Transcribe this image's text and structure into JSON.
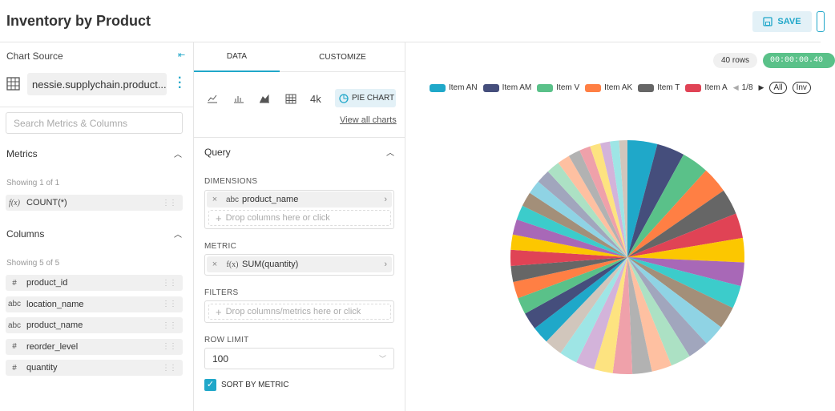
{
  "header": {
    "title": "Inventory by Product",
    "save": "SAVE"
  },
  "source": {
    "heading": "Chart Source",
    "dataset": "nessie.supplychain.product...",
    "search_placeholder": "Search Metrics & Columns",
    "metrics_heading": "Metrics",
    "metrics_showing": "Showing 1 of 1",
    "metrics": [
      {
        "icon": "f(x)",
        "name": "COUNT(*)"
      }
    ],
    "columns_heading": "Columns",
    "columns_showing": "Showing 5 of 5",
    "columns": [
      {
        "icon": "#",
        "name": "product_id"
      },
      {
        "icon": "abc",
        "name": "location_name"
      },
      {
        "icon": "abc",
        "name": "product_name"
      },
      {
        "icon": "#",
        "name": "reorder_level"
      },
      {
        "icon": "#",
        "name": "quantity"
      }
    ]
  },
  "tabs": [
    "DATA",
    "CUSTOMIZE"
  ],
  "chart_types": {
    "big_number": "4k",
    "selected": "PIE CHART",
    "view_all": "View all charts"
  },
  "query": {
    "heading": "Query",
    "dimensions_label": "DIMENSIONS",
    "dimension": {
      "icon": "abc",
      "name": "product_name"
    },
    "dimension_drop": "Drop columns here or click",
    "metric_label": "METRIC",
    "metric": {
      "icon": "f(x)",
      "name": "SUM(quantity)"
    },
    "filters_label": "FILTERS",
    "filters_drop": "Drop columns/metrics here or click",
    "row_limit_label": "ROW LIMIT",
    "row_limit": 100,
    "sort_by_metric": "SORT BY METRIC"
  },
  "status": {
    "rows": "40 rows",
    "timer": "00:00:00.40"
  },
  "legend_controls": {
    "page": "1/8",
    "all": "All",
    "inv": "Inv"
  },
  "chart_data": {
    "type": "pie",
    "categories": [
      "Item AN",
      "Item AM",
      "Item V",
      "Item AK",
      "Item T",
      "Item A",
      null,
      null,
      null,
      null,
      null,
      null,
      null,
      null,
      null,
      null,
      null,
      null,
      null,
      null,
      null,
      null,
      null,
      null,
      null,
      null,
      null,
      null,
      null,
      null,
      null,
      null,
      null,
      null,
      null,
      null,
      null,
      null,
      null,
      null
    ],
    "values": [
      4.3,
      4.0,
      3.9,
      3.8,
      3.7,
      3.6,
      3.5,
      3.4,
      3.3,
      3.2,
      3.1,
      3.0,
      2.9,
      2.9,
      2.8,
      2.8,
      2.7,
      2.7,
      2.6,
      2.6,
      2.5,
      2.5,
      2.4,
      2.4,
      2.3,
      2.3,
      2.2,
      2.2,
      2.1,
      2.1,
      2.0,
      2.0,
      1.9,
      1.8,
      1.7,
      1.6,
      1.5,
      1.4,
      1.3,
      1.2
    ],
    "colors": [
      "#1FA8C9",
      "#454E7C",
      "#5AC189",
      "#FF7F44",
      "#666666",
      "#E04355",
      "#FCC700",
      "#A868B7",
      "#3CCCCB",
      "#A38F79",
      "#8FD3E4",
      "#A1A6BD",
      "#ACE1C4",
      "#FEC0A1",
      "#B2B2B2",
      "#EFA1AA",
      "#FDE380",
      "#D3B3DA",
      "#9EE5E5",
      "#D1C6BC"
    ]
  }
}
